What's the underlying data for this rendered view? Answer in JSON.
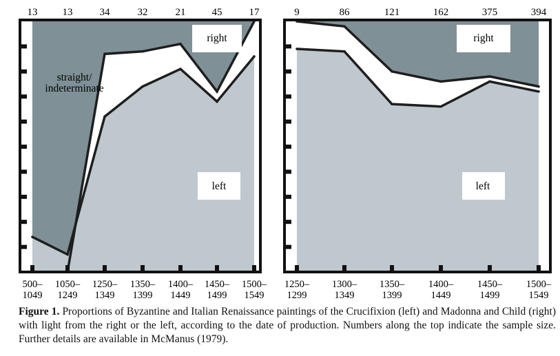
{
  "chart_data": [
    {
      "type": "area",
      "x": [
        "500–1049",
        "1050–1249",
        "1250–1349",
        "1350–1399",
        "1400–1449",
        "1450–1499",
        "1500–1549"
      ],
      "x_label_lines": [
        [
          "500–",
          "1049"
        ],
        [
          "1050–",
          "1249"
        ],
        [
          "1250–",
          "1349"
        ],
        [
          "1350–",
          "1399"
        ],
        [
          "1400–",
          "1449"
        ],
        [
          "1450–",
          "1499"
        ],
        [
          "1500–",
          "1549"
        ]
      ],
      "sample_sizes": [
        "13",
        "13",
        "34",
        "32",
        "21",
        "45",
        "17"
      ],
      "ylim": [
        0,
        100
      ],
      "left_percent": [
        14,
        7,
        62,
        74,
        81,
        68,
        86
      ],
      "right_percent": [
        0,
        0,
        87,
        88,
        91,
        72,
        100
      ],
      "region_labels": {
        "right": "right",
        "straight": [
          "straight/",
          "indeterminate"
        ],
        "left": "left"
      }
    },
    {
      "type": "area",
      "x": [
        "1250–1299",
        "1300–1349",
        "1350–1399",
        "1400–1449",
        "1450–1499",
        "1500–1549"
      ],
      "x_label_lines": [
        [
          "1250–",
          "1299"
        ],
        [
          "1300–",
          "1349"
        ],
        [
          "1350–",
          "1399"
        ],
        [
          "1400–",
          "1449"
        ],
        [
          "1450–",
          "1499"
        ],
        [
          "1500–",
          "1549"
        ]
      ],
      "sample_sizes": [
        "9",
        "86",
        "121",
        "162",
        "375",
        "394"
      ],
      "ylim": [
        0,
        100
      ],
      "left_percent": [
        89,
        88,
        67,
        66,
        76,
        72
      ],
      "right_percent": [
        100,
        98,
        80,
        76,
        78,
        74
      ],
      "region_labels": {
        "right": "right",
        "left": "left"
      }
    }
  ],
  "colors": {
    "left_fill": "#bfc8ce",
    "right_fill": "#7f9096",
    "line": "#1e1e1e",
    "frame": "#111111"
  },
  "caption": {
    "label": "Figure 1.",
    "text": " Proportions of Byzantine and Italian Renaissance paintings of the Crucifixion (left) and Madonna and Child (right) with light from the right or the left, according to the date of production. Numbers along the top indicate the sample size. Further details are available in McManus (1979)."
  }
}
